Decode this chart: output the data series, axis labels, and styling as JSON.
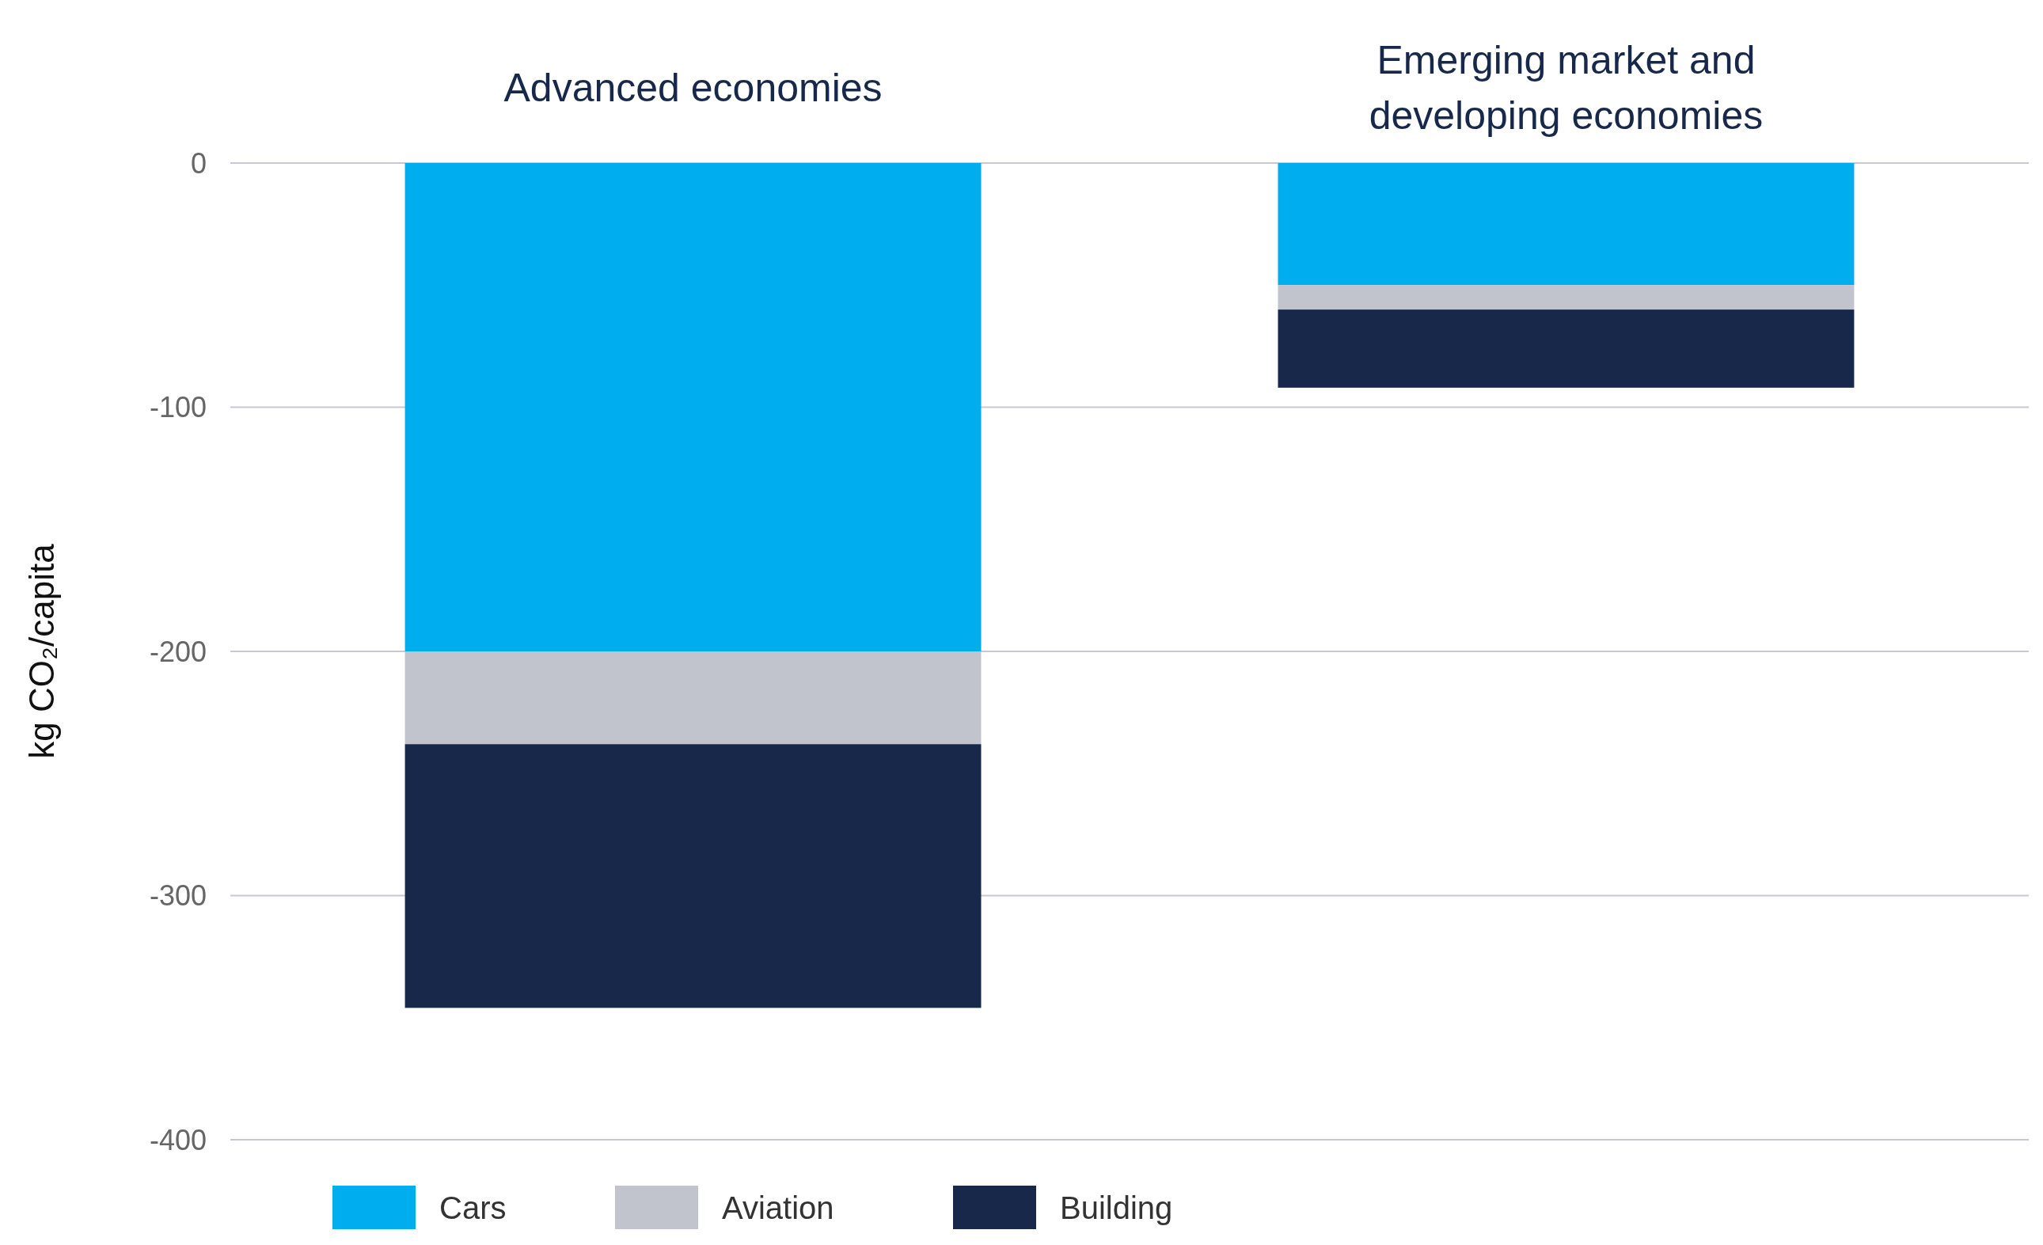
{
  "chart_data": {
    "type": "bar",
    "stacked": true,
    "ylabel": "kg CO₂/capita",
    "categories": [
      "Advanced economies",
      "Emerging market and developing economies"
    ],
    "series": [
      {
        "name": "Cars",
        "color": "#00adee",
        "values": [
          -200,
          -50
        ]
      },
      {
        "name": "Aviation",
        "color": "#c1c4cd",
        "values": [
          -38,
          -10
        ]
      },
      {
        "name": "Building",
        "color": "#17284b",
        "values": [
          -108,
          -32
        ]
      }
    ],
    "ylim": [
      -400,
      0
    ],
    "yticks": [
      -400,
      -300,
      -200,
      -100,
      0
    ],
    "grid": "y",
    "legend": "bottom left"
  }
}
